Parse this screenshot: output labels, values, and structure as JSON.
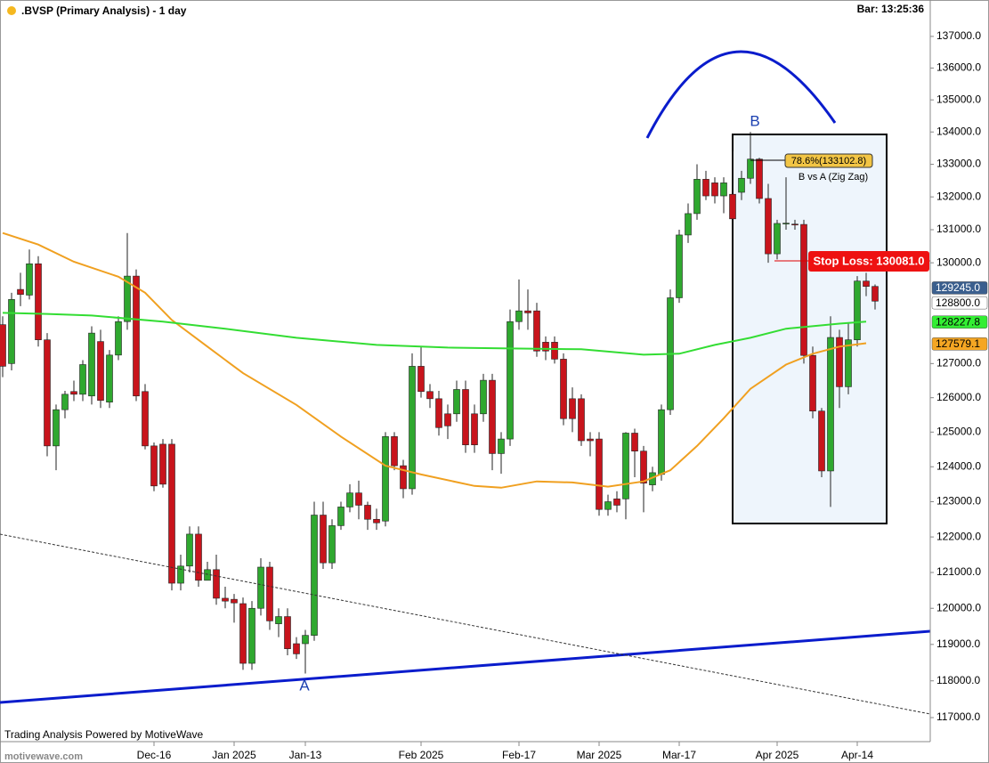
{
  "chart_data": {
    "type": "candlestick",
    "title": ".BVSP (Primary Analysis) - 1 day",
    "bar_time": "Bar: 13:25:36",
    "footer": "Trading Analysis Powered by MotiveWave",
    "watermark": "motivewave.com",
    "log_scale": true,
    "grid": false,
    "up_color": "#2fa82f",
    "down_color": "#c8141c",
    "categories": [
      null,
      null,
      null,
      null,
      null,
      null,
      null,
      null,
      null,
      null,
      null,
      null,
      null,
      null,
      null,
      null,
      null,
      "Dec-16",
      null,
      null,
      null,
      null,
      null,
      null,
      null,
      null,
      "Jan 2025",
      null,
      null,
      null,
      null,
      null,
      null,
      null,
      "Jan-13",
      null,
      null,
      null,
      null,
      null,
      null,
      null,
      null,
      null,
      null,
      null,
      null,
      "Feb 2025",
      null,
      null,
      null,
      null,
      null,
      null,
      null,
      null,
      null,
      null,
      "Feb-17",
      null,
      null,
      null,
      null,
      null,
      null,
      null,
      null,
      "Mar 2025",
      null,
      null,
      null,
      null,
      null,
      null,
      null,
      null,
      "Mar-17",
      null,
      null,
      null,
      null,
      null,
      null,
      null,
      null,
      null,
      null,
      "Apr 2025",
      null,
      null,
      null,
      null,
      null,
      null,
      null,
      null,
      "Apr-14",
      null,
      null
    ],
    "open": [
      128150,
      127000,
      129200,
      129030,
      129970,
      127700,
      124600,
      125650,
      126180,
      126100,
      126050,
      127650,
      125870,
      127250,
      128240,
      129600,
      126180,
      124600,
      124650,
      124650,
      120700,
      121180,
      122080,
      120780,
      121080,
      120280,
      120250,
      120130,
      118480,
      120000,
      121150,
      119570,
      119770,
      119020,
      119020,
      119250,
      122620,
      121270,
      122320,
      122850,
      123250,
      122900,
      122500,
      122450,
      124870,
      124030,
      123370,
      126920,
      126180,
      125970,
      125530,
      125530,
      126240,
      125530,
      125530,
      126510,
      124380,
      124800,
      128240,
      128560,
      128560,
      127630,
      127630,
      127130,
      125970,
      125970,
      124800,
      124800,
      122780,
      123080,
      123080,
      124970,
      124450,
      123480,
      123780,
      125650,
      128950,
      130840,
      131490,
      132540,
      132430,
      132030,
      132080,
      132140,
      132570,
      133160,
      131950,
      130270,
      131190,
      131170,
      131160,
      127240,
      125610,
      123880,
      127770,
      126320,
      127700,
      129450,
      129290
    ],
    "high": [
      128400,
      129100,
      129700,
      130400,
      130200,
      127900,
      125800,
      126200,
      126500,
      127100,
      128100,
      128000,
      127400,
      128400,
      130900,
      129800,
      126400,
      124700,
      124800,
      124800,
      121500,
      122300,
      122300,
      121300,
      121500,
      120600,
      120400,
      120300,
      120200,
      121400,
      121300,
      120000,
      120000,
      119200,
      119400,
      123000,
      123000,
      122500,
      123000,
      123500,
      123600,
      123000,
      122800,
      125000,
      125000,
      124200,
      127300,
      127500,
      126400,
      126200,
      125800,
      126500,
      126500,
      125800,
      126700,
      126700,
      125000,
      128600,
      129500,
      129200,
      128800,
      127800,
      127800,
      127300,
      126300,
      126100,
      125000,
      125000,
      123200,
      123300,
      125000,
      125100,
      124600,
      124000,
      125800,
      129200,
      131000,
      131800,
      133000,
      132800,
      132600,
      132600,
      133400,
      132800,
      134000,
      133200,
      132400,
      131300,
      132600,
      131300,
      131300,
      127500,
      125700,
      128400,
      128000,
      128200,
      129600,
      129700,
      129350
    ],
    "low": [
      126600,
      126800,
      128700,
      128900,
      127500,
      124300,
      123900,
      125400,
      125900,
      125900,
      125800,
      125700,
      125700,
      127100,
      128000,
      125900,
      124500,
      123300,
      123400,
      120500,
      120500,
      121000,
      120600,
      120800,
      120100,
      120000,
      119600,
      118300,
      118300,
      119800,
      119400,
      119200,
      118700,
      118600,
      118200,
      119100,
      121100,
      121100,
      122200,
      122700,
      122500,
      122200,
      122200,
      122300,
      123900,
      123100,
      123200,
      126000,
      125700,
      124900,
      124800,
      125300,
      124400,
      124400,
      125300,
      123900,
      123800,
      124600,
      128000,
      128000,
      127200,
      127100,
      127000,
      125200,
      125000,
      124600,
      124300,
      122600,
      122600,
      122700,
      122500,
      123700,
      122700,
      123300,
      123600,
      125500,
      128800,
      130600,
      131300,
      131900,
      131800,
      131500,
      131300,
      131900,
      132400,
      131800,
      130000,
      130100,
      131000,
      131000,
      127000,
      125400,
      123700,
      122850,
      125700,
      126100,
      127500,
      129000,
      128600
    ],
    "close": [
      126920,
      128900,
      129050,
      129970,
      127700,
      124600,
      125650,
      126100,
      126100,
      126970,
      127900,
      125920,
      127250,
      128240,
      129600,
      126050,
      124600,
      123450,
      123500,
      120700,
      121180,
      122080,
      120780,
      121080,
      120280,
      120200,
      120150,
      118480,
      120000,
      121150,
      119650,
      119770,
      118880,
      118740,
      119250,
      122620,
      121270,
      122320,
      122850,
      123250,
      122900,
      122500,
      122400,
      124870,
      124030,
      123370,
      126920,
      126180,
      125970,
      125130,
      125180,
      126240,
      124630,
      124630,
      126510,
      124380,
      124800,
      128240,
      128560,
      128500,
      127370,
      127370,
      127130,
      125390,
      125390,
      124750,
      124750,
      122780,
      123000,
      122900,
      124970,
      124450,
      123530,
      123830,
      125650,
      128950,
      130840,
      131490,
      132540,
      132030,
      132030,
      132430,
      131330,
      132570,
      133160,
      131950,
      130270,
      131190,
      131200,
      131160,
      127240,
      125610,
      123880,
      127770,
      126320,
      127700,
      129450,
      129290,
      128850
    ],
    "lines": [
      {
        "color": "#f0a020",
        "x": [
          0,
          4,
          8,
          13,
          16,
          19,
          23,
          27,
          33,
          38,
          43,
          47,
          53,
          56,
          60,
          64,
          68,
          72,
          75,
          78,
          81,
          84,
          88,
          91,
          94,
          97
        ],
        "values": [
          130900,
          130550,
          130030,
          129580,
          129100,
          128290,
          127500,
          126720,
          125790,
          124870,
          124030,
          123780,
          123450,
          123400,
          123580,
          123550,
          123430,
          123580,
          123900,
          124600,
          125400,
          126260,
          126970,
          127290,
          127500,
          127600
        ]
      },
      {
        "color": "#33dd33",
        "x": [
          0,
          5,
          10,
          18,
          25,
          33,
          42,
          50,
          56,
          65,
          72,
          76,
          80,
          84,
          88,
          94,
          97
        ],
        "values": [
          128500,
          128470,
          128420,
          128240,
          128030,
          127760,
          127550,
          127470,
          127450,
          127420,
          127260,
          127290,
          127550,
          127760,
          128030,
          128180,
          128240
        ]
      }
    ],
    "ylim": [
      116350,
      138160
    ],
    "yticks": [
      {
        "value": 137000,
        "label": "137000.0"
      },
      {
        "value": 136000,
        "label": "136000.0"
      },
      {
        "value": 135000,
        "label": "135000.0"
      },
      {
        "value": 134000,
        "label": "134000.0"
      },
      {
        "value": 133000,
        "label": "133000.0"
      },
      {
        "value": 132000,
        "label": "132000.0"
      },
      {
        "value": 131000,
        "label": "131000.0"
      },
      {
        "value": 130000,
        "label": "130000.0"
      },
      {
        "value": 127000,
        "label": "127000.0"
      },
      {
        "value": 126000,
        "label": "126000.0"
      },
      {
        "value": 125000,
        "label": "125000.0"
      },
      {
        "value": 124000,
        "label": "124000.0"
      },
      {
        "value": 123000,
        "label": "123000.0"
      },
      {
        "value": 122000,
        "label": "122000.0"
      },
      {
        "value": 121000,
        "label": "121000.0"
      },
      {
        "value": 120000,
        "label": "120000.0"
      },
      {
        "value": 119000,
        "label": "119000.0"
      },
      {
        "value": 118000,
        "label": "118000.0"
      },
      {
        "value": 117000,
        "label": "117000.0"
      }
    ],
    "price_labels": [
      {
        "value": 129245,
        "label": "129245.0",
        "color": "#3b5f8e",
        "text_color": "#ffffff"
      },
      {
        "value": 128800,
        "label": "128800.0",
        "color": "#ffffff",
        "text_color": "#000000"
      },
      {
        "value": 128227.8,
        "label": "128227.8",
        "color": "#33ee33",
        "text_color": "#000000"
      },
      {
        "value": 127579.1,
        "label": "127579.1",
        "color": "#f5a623",
        "text_color": "#000000"
      }
    ],
    "annotations": {
      "a": "A",
      "b": "B",
      "fib": "78.6%(133102.8)",
      "wave": "B vs A (Zig Zag)",
      "stop": "Stop Loss: 130081.0"
    }
  }
}
